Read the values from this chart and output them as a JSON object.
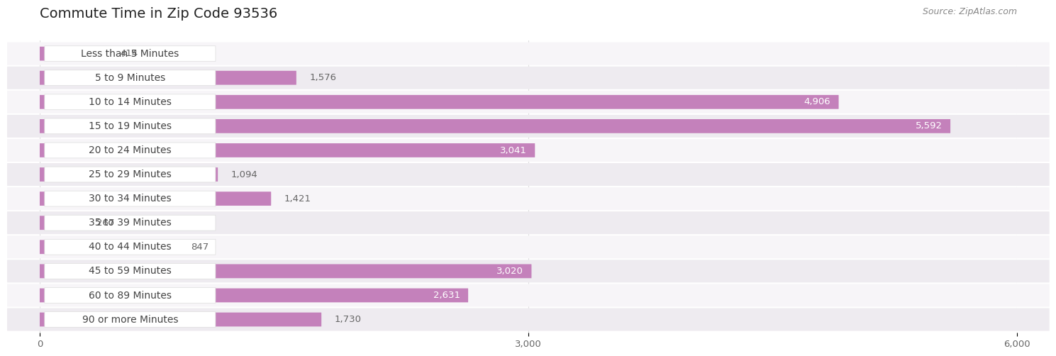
{
  "title": "Commute Time in Zip Code 93536",
  "source": "Source: ZipAtlas.com",
  "categories": [
    "Less than 5 Minutes",
    "5 to 9 Minutes",
    "10 to 14 Minutes",
    "15 to 19 Minutes",
    "20 to 24 Minutes",
    "25 to 29 Minutes",
    "30 to 34 Minutes",
    "35 to 39 Minutes",
    "40 to 44 Minutes",
    "45 to 59 Minutes",
    "60 to 89 Minutes",
    "90 or more Minutes"
  ],
  "values": [
    414,
    1576,
    4906,
    5592,
    3041,
    1094,
    1421,
    267,
    847,
    3020,
    2631,
    1730
  ],
  "bar_color": "#c481bb",
  "row_bg_light": "#f7f5f8",
  "row_bg_dark": "#eeebf0",
  "fig_bg": "#ffffff",
  "title_color": "#222222",
  "label_color": "#444444",
  "value_color_inside": "#ffffff",
  "value_color_outside": "#666666",
  "source_color": "#888888",
  "grid_color": "#dddddd",
  "xlim": [
    0,
    6000
  ],
  "xticks": [
    0,
    3000,
    6000
  ],
  "title_fontsize": 14,
  "label_fontsize": 10,
  "value_fontsize": 9.5,
  "source_fontsize": 9
}
